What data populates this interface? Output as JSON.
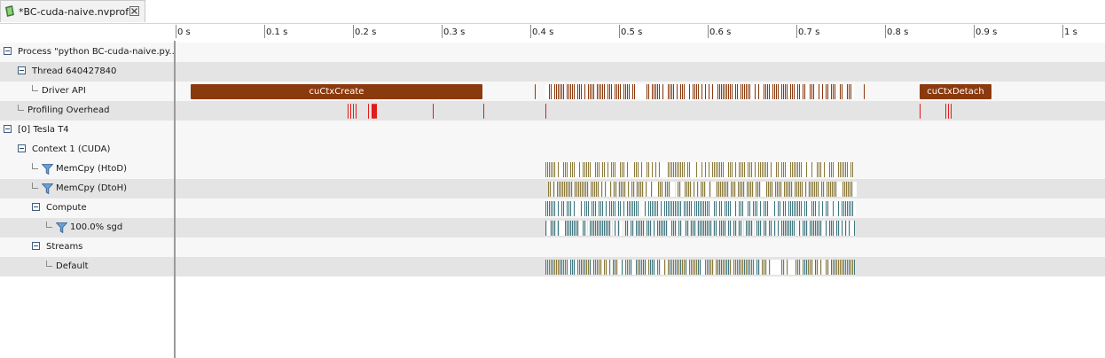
{
  "tab": {
    "title": "*BC-cuda-naive.nvprof",
    "icon": "nvprof-file-icon",
    "close_icon": "close-icon"
  },
  "ruler": {
    "ticks": [
      "0 s",
      "0.1 s",
      "0.2 s",
      "0.3 s",
      "0.4 s",
      "0.5 s",
      "0.6 s",
      "0.7 s",
      "0.8 s",
      "0.9 s",
      "1 s"
    ]
  },
  "tree": [
    {
      "label": "Process \"python BC-cuda-naive.py...",
      "depth": 0,
      "toggle": true,
      "shade": "light"
    },
    {
      "label": "Thread 640427840",
      "depth": 1,
      "toggle": true,
      "shade": "dark"
    },
    {
      "label": "Driver API",
      "depth": 2,
      "leaf": true,
      "shade": "light"
    },
    {
      "label": "Profiling Overhead",
      "depth": 1,
      "leaf": true,
      "shade": "dark"
    },
    {
      "label": "[0] Tesla T4",
      "depth": 0,
      "toggle": true,
      "shade": "light"
    },
    {
      "label": "Context 1 (CUDA)",
      "depth": 1,
      "toggle": true,
      "shade": "light"
    },
    {
      "label": "MemCpy (HtoD)",
      "depth": 2,
      "leaf": true,
      "funnel": true,
      "shade": "light"
    },
    {
      "label": "MemCpy (DtoH)",
      "depth": 2,
      "leaf": true,
      "funnel": true,
      "shade": "dark"
    },
    {
      "label": "Compute",
      "depth": 2,
      "toggle": true,
      "shade": "light"
    },
    {
      "label": "100.0% sgd",
      "depth": 3,
      "leaf": true,
      "funnel": true,
      "shade": "dark"
    },
    {
      "label": "Streams",
      "depth": 2,
      "toggle": true,
      "shade": "light"
    },
    {
      "label": "Default",
      "depth": 3,
      "leaf": true,
      "shade": "dark"
    }
  ],
  "driver_api": {
    "color": "#8b3a0e",
    "labeled": [
      {
        "label": "cuCtxCreate",
        "start": 0.009,
        "end": 0.338
      },
      {
        "label": "cuCtxDetach",
        "start": 0.831,
        "end": 0.912
      }
    ],
    "marks": [
      0.397,
      0.768
    ],
    "dense": {
      "start": 0.409,
      "end": 0.757
    }
  },
  "profiling_overhead": {
    "color": "#e01b1b",
    "marks": [
      0.186,
      0.189,
      0.192,
      0.195,
      0.209,
      0.213,
      0.215,
      0.217,
      0.282,
      0.339,
      0.409,
      0.831,
      0.86,
      0.863,
      0.866
    ]
  },
  "memcpy_htod": {
    "color": "#8b7a3a",
    "start": 0.409,
    "end": 0.757
  },
  "memcpy_dtoh": {
    "color": "#8b7a3a",
    "start": 0.412,
    "end": 0.759
  },
  "compute": {
    "color": "#3f7880",
    "start": 0.409,
    "end": 0.758
  },
  "sgd": {
    "color": "#3f7880",
    "start": 0.409,
    "end": 0.758
  },
  "default_stream": {
    "colors": [
      "#8b7a3a",
      "#3f7880"
    ],
    "start": 0.409,
    "end": 0.758
  },
  "colors": {
    "row_light": "#f7f7f7",
    "row_dark": "#e4e4e4",
    "driver_api": "#8b3a0e",
    "overhead": "#e01b1b",
    "memcpy": "#8b7a3a",
    "kernel": "#3f7880",
    "toggle_border": "#3f5c80"
  }
}
